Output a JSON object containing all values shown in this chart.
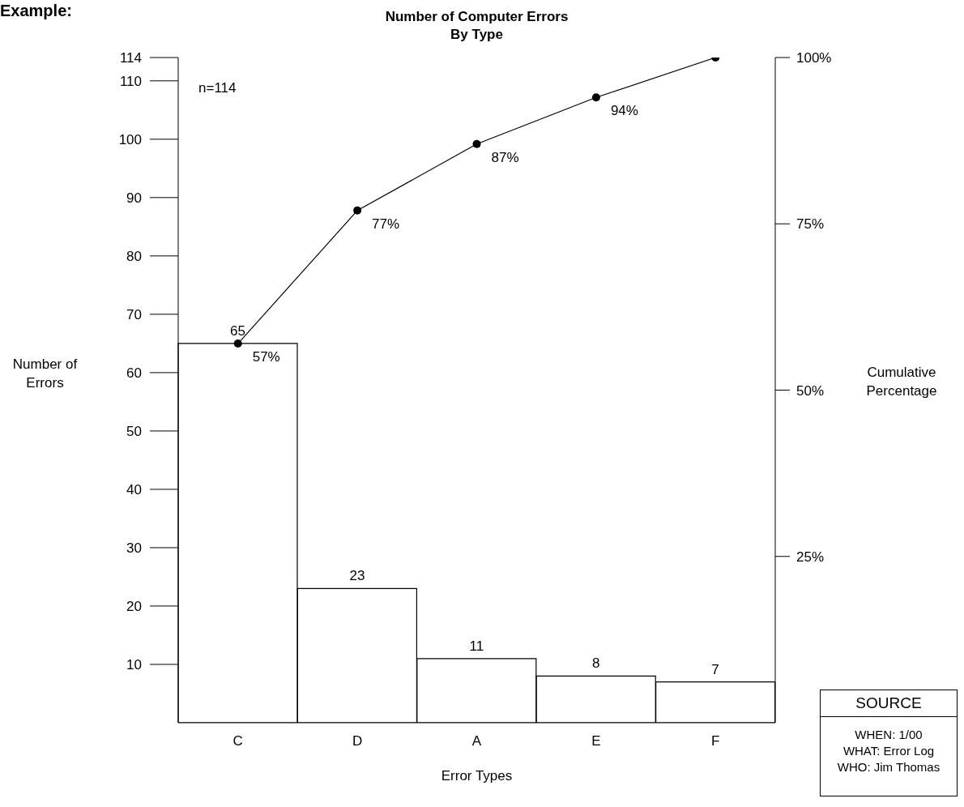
{
  "chart_data": {
    "type": "bar",
    "title": "Number of Computer Errors By Type",
    "xlabel": "Error Types",
    "ylabel": "Number of Errors",
    "y2label": "Cumulative Percentage",
    "categories": [
      "C",
      "D",
      "A",
      "E",
      "F"
    ],
    "series": [
      {
        "color": "#ffffff",
        "values": [
          65,
          23,
          11,
          8,
          7
        ],
        "value_labels": [
          "65",
          "23",
          "11",
          "8",
          "7"
        ]
      },
      {
        "type": "line",
        "axis": "y2",
        "color": "#000000",
        "marker": "circle",
        "values": [
          57,
          77,
          87,
          94,
          100
        ],
        "value_labels": [
          "57%",
          "77%",
          "87%",
          "94%",
          null
        ]
      }
    ],
    "ylim": [
      0,
      114
    ],
    "yticks": [
      10,
      20,
      30,
      40,
      50,
      60,
      70,
      80,
      90,
      100,
      110,
      114
    ],
    "y2lim": [
      0,
      100
    ],
    "y2ticks": [
      {
        "value": 25,
        "label": "25%"
      },
      {
        "value": 50,
        "label": "50%"
      },
      {
        "value": 75,
        "label": "75%"
      },
      {
        "value": 100,
        "label": "100%"
      }
    ],
    "grid": false,
    "legend": false,
    "annotations": [
      "Example:",
      "n=114",
      "SOURCE",
      "WHEN: 1/00",
      "WHAT: Error Log",
      "WHO: Jim Thomas"
    ]
  }
}
